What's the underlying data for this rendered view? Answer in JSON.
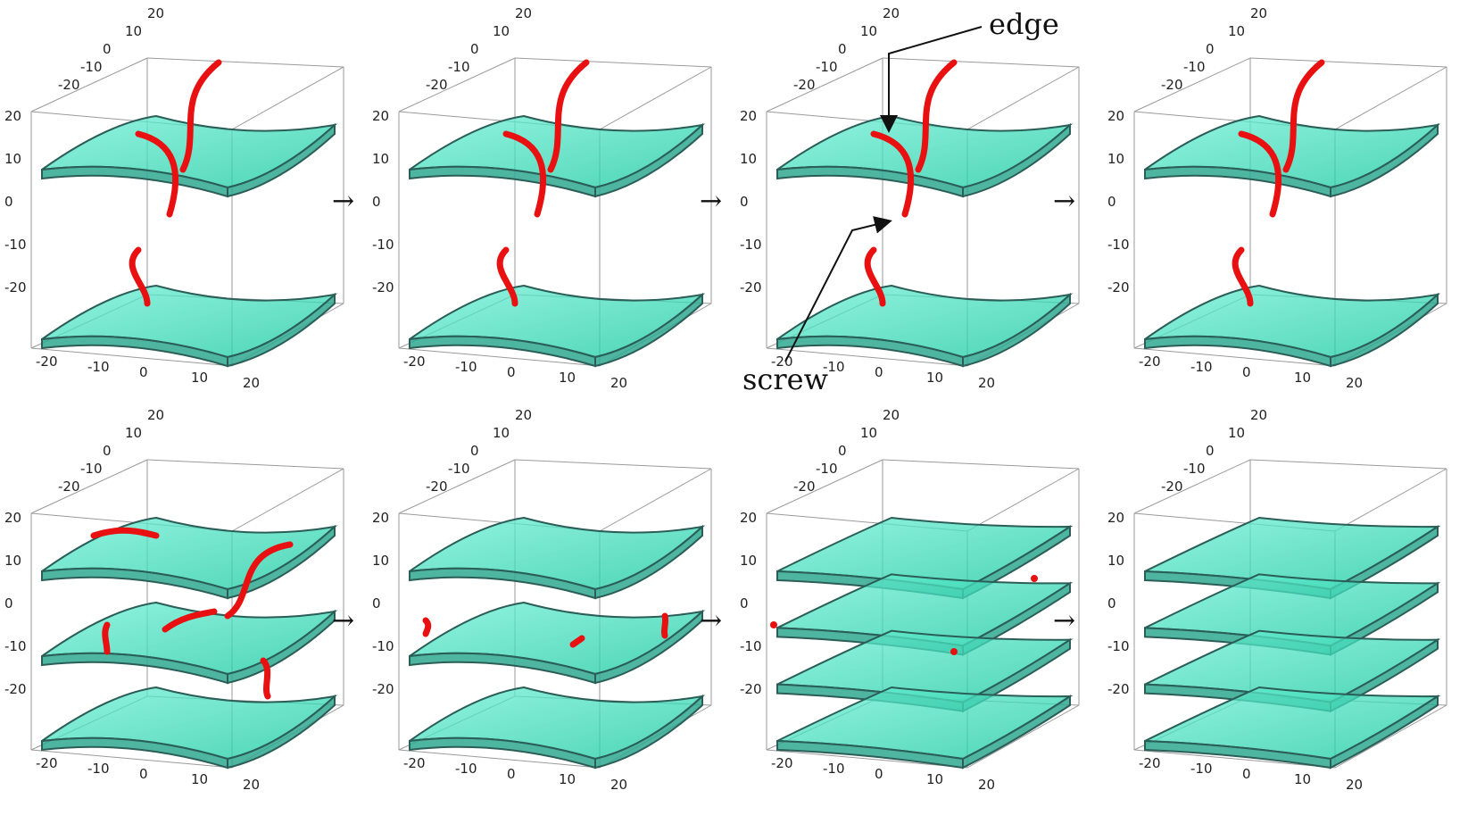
{
  "panels": [
    {
      "id": "p1",
      "sheets": 2,
      "defect": "high",
      "ticks": [
        "20",
        "10",
        "0",
        "-10",
        "-20"
      ],
      "row": 0,
      "col": 0
    },
    {
      "id": "p2",
      "sheets": 2,
      "defect": "high",
      "ticks": [
        "20",
        "10",
        "0",
        "-10",
        "-20"
      ],
      "row": 0,
      "col": 1
    },
    {
      "id": "p3",
      "sheets": 2,
      "defect": "high",
      "ticks": [
        "20",
        "10",
        "0",
        "-10",
        "-20"
      ],
      "row": 0,
      "col": 2
    },
    {
      "id": "p4",
      "sheets": 2,
      "defect": "high",
      "ticks": [
        "20",
        "10",
        "0",
        "-10",
        "-20"
      ],
      "row": 0,
      "col": 3
    },
    {
      "id": "p5",
      "sheets": 3,
      "defect": "medium",
      "ticks": [
        "20",
        "10",
        "0",
        "-10",
        "-20"
      ],
      "row": 1,
      "col": 0
    },
    {
      "id": "p6",
      "sheets": 3,
      "defect": "low",
      "ticks": [
        "20",
        "10",
        "0",
        "-10",
        "-20"
      ],
      "row": 1,
      "col": 1
    },
    {
      "id": "p7",
      "sheets": 4,
      "defect": "tiny",
      "ticks": [
        "20",
        "10",
        "0",
        "-10",
        "-20"
      ],
      "row": 1,
      "col": 2
    },
    {
      "id": "p8",
      "sheets": 4,
      "defect": "none",
      "ticks": [
        "20",
        "10",
        "0",
        "-10",
        "-20"
      ],
      "row": 1,
      "col": 3
    }
  ],
  "arrows": [
    "→",
    "→",
    "→",
    "→",
    "→",
    "→"
  ],
  "callouts": {
    "edge": "edge",
    "screw": "screw"
  },
  "colors": {
    "sheet_fill": "#1fd3a9",
    "sheet_edge": "#2a5e57",
    "defect": "#e81010",
    "box": "#9a9a9a"
  }
}
